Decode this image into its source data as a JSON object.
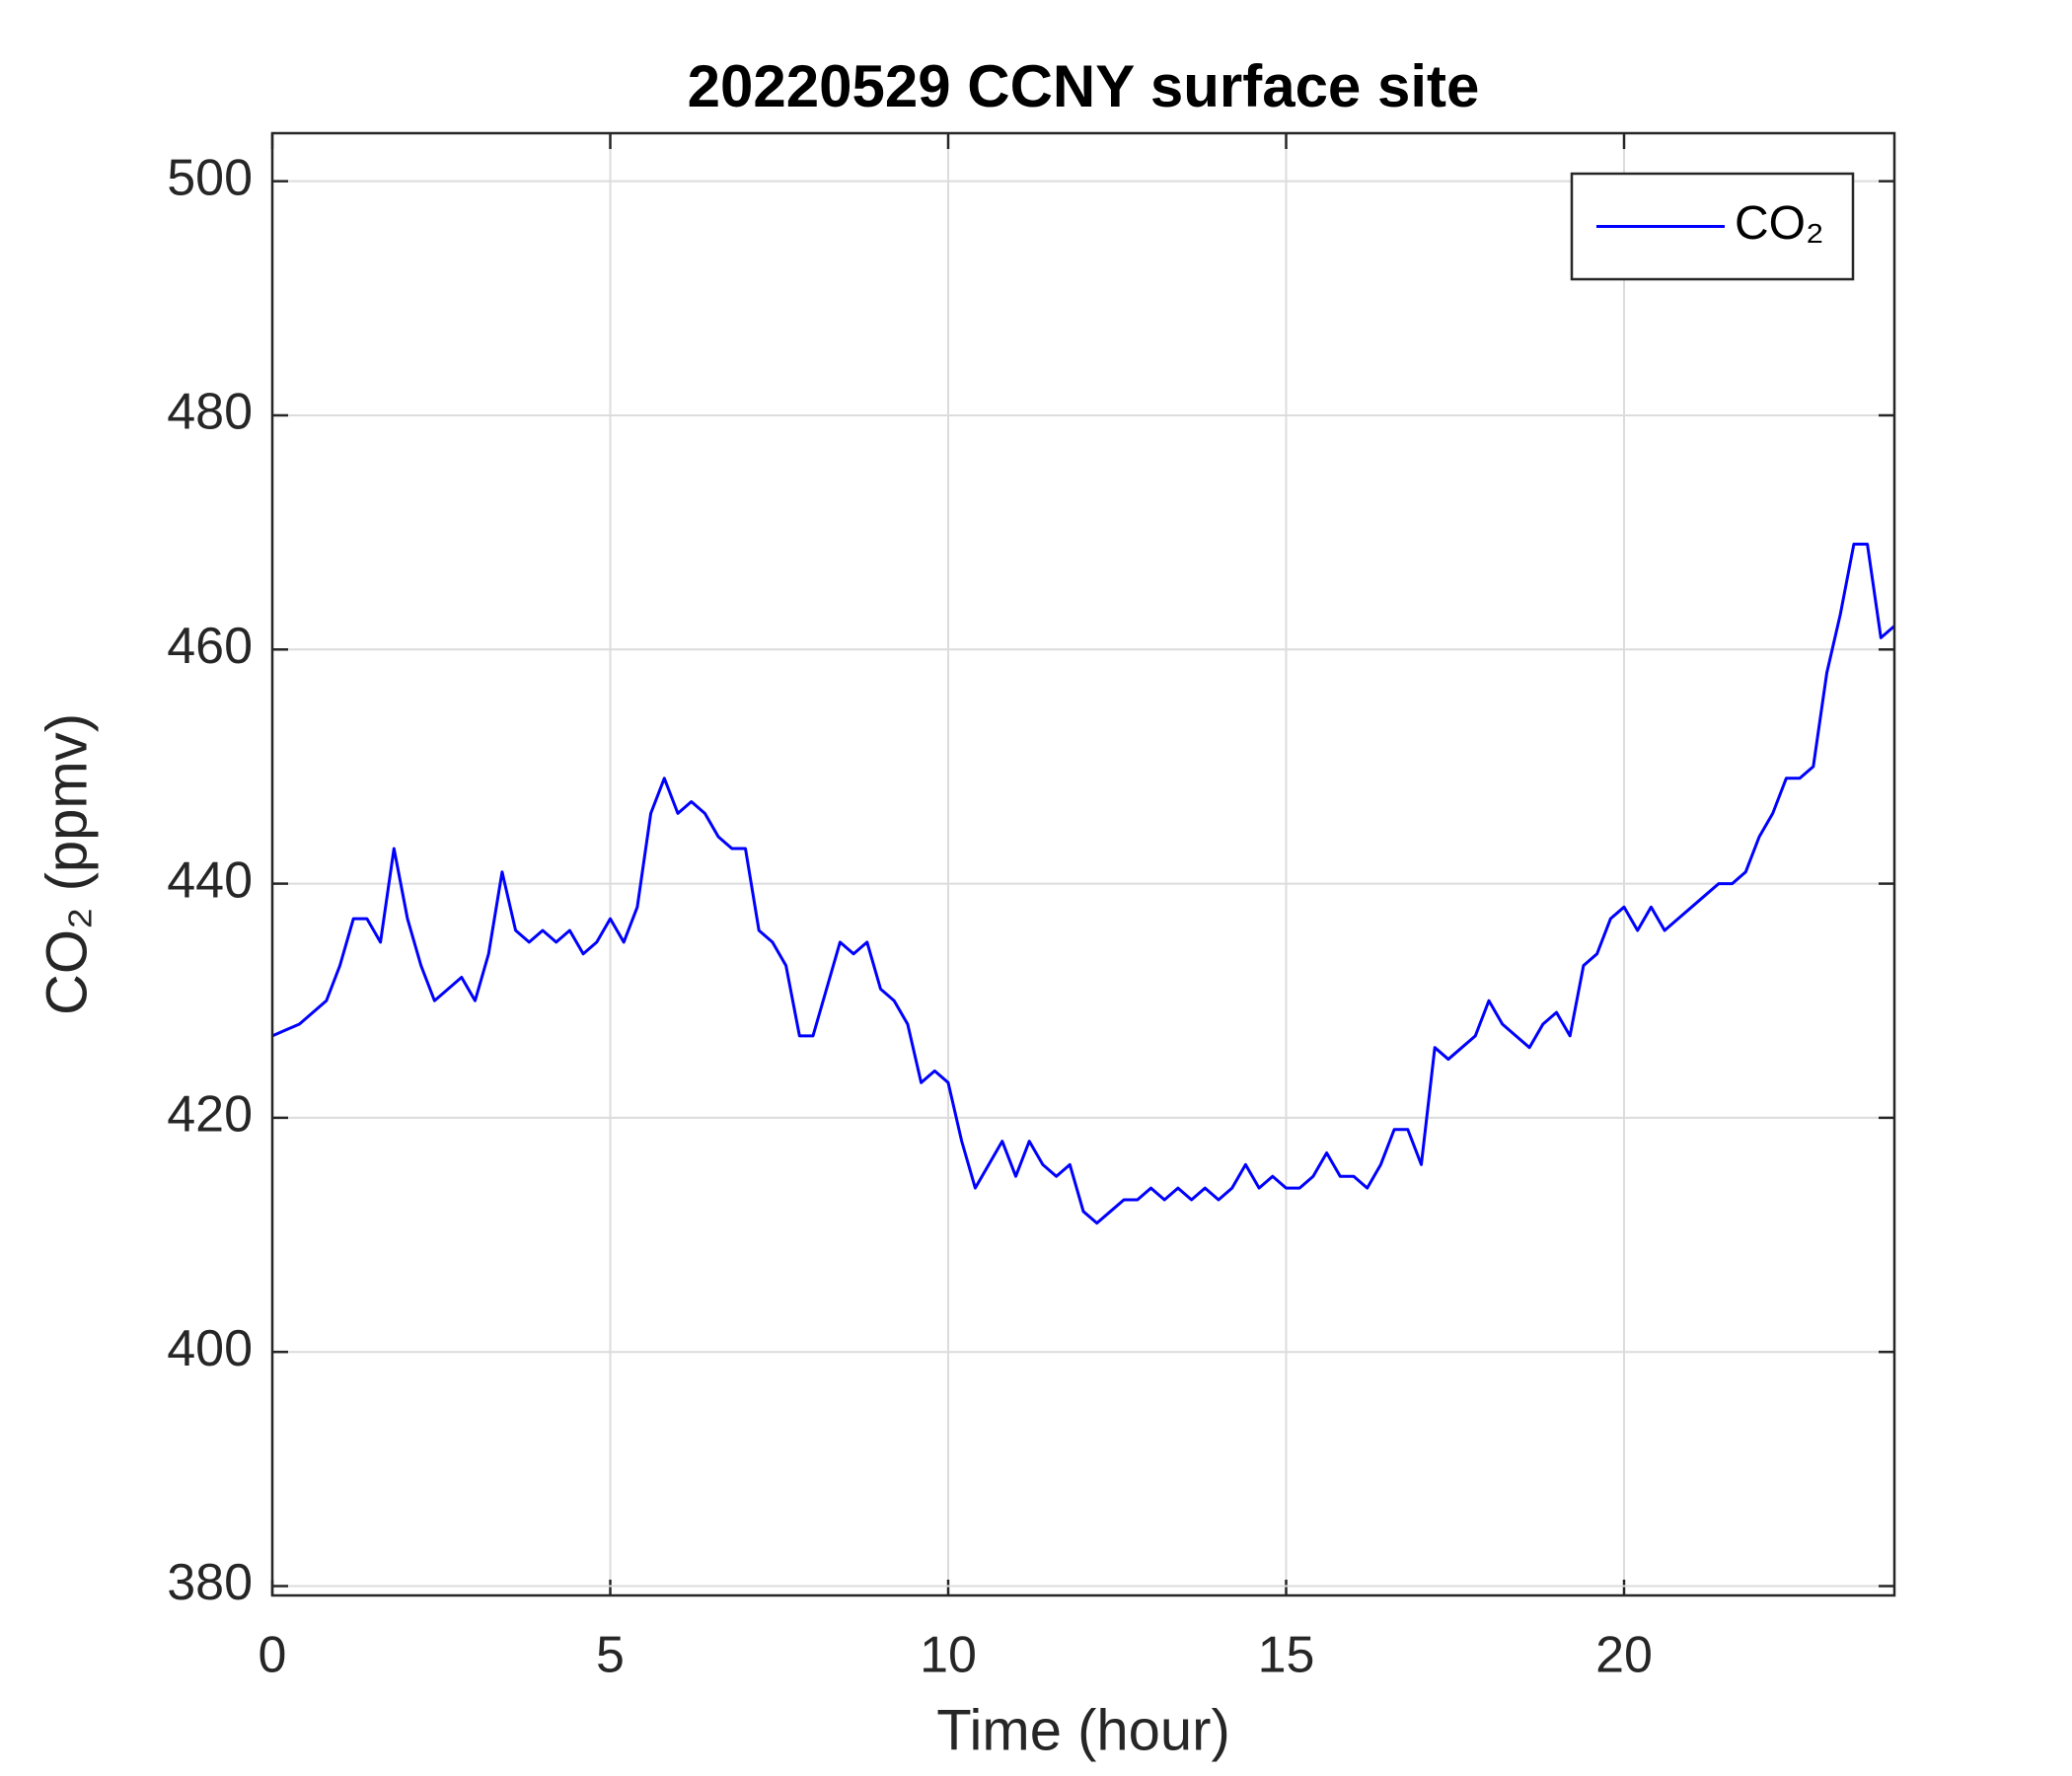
{
  "chart_data": {
    "type": "line",
    "title": "20220529 CCNY surface site",
    "xlabel": "Time (hour)",
    "ylabel": "CO₂ (ppmv)",
    "x": [
      0,
      0.2,
      0.4,
      0.6,
      0.8,
      1,
      1.2,
      1.4,
      1.6,
      1.8,
      2,
      2.2,
      2.4,
      2.6,
      2.8,
      3,
      3.2,
      3.4,
      3.6,
      3.8,
      4,
      4.2,
      4.4,
      4.6,
      4.8,
      5,
      5.2,
      5.4,
      5.6,
      5.8,
      6,
      6.2,
      6.4,
      6.6,
      6.8,
      7,
      7.2,
      7.4,
      7.6,
      7.8,
      8,
      8.2,
      8.4,
      8.6,
      8.8,
      9,
      9.2,
      9.4,
      9.6,
      9.8,
      10,
      10.2,
      10.4,
      10.6,
      10.8,
      11,
      11.2,
      11.4,
      11.6,
      11.8,
      12,
      12.2,
      12.4,
      12.6,
      12.8,
      13,
      13.2,
      13.4,
      13.6,
      13.8,
      14,
      14.2,
      14.4,
      14.6,
      14.8,
      15,
      15.2,
      15.4,
      15.6,
      15.8,
      16,
      16.2,
      16.4,
      16.6,
      16.8,
      17,
      17.2,
      17.4,
      17.6,
      17.8,
      18,
      18.2,
      18.4,
      18.6,
      18.8,
      19,
      19.2,
      19.4,
      19.6,
      19.8,
      20,
      20.2,
      20.4,
      20.6,
      20.8,
      21,
      21.2,
      21.4,
      21.6,
      21.8,
      22,
      22.2,
      22.4,
      22.6,
      22.8,
      23,
      23.2,
      23.4,
      23.6,
      23.8,
      24
    ],
    "series": [
      {
        "name": "CO₂",
        "color": "#0000ff",
        "values": [
          427,
          427.5,
          428,
          429,
          430,
          433,
          437,
          437,
          435,
          443,
          437,
          433,
          430,
          431,
          432,
          430,
          434,
          441,
          436,
          435,
          436,
          435,
          436,
          434,
          435,
          437,
          435,
          438,
          446,
          449,
          446,
          447,
          446,
          444,
          443,
          443,
          436,
          435,
          433,
          427,
          427,
          431,
          435,
          434,
          435,
          431,
          430,
          428,
          423,
          424,
          423,
          418,
          414,
          416,
          418,
          415,
          418,
          416,
          415,
          416,
          412,
          411,
          412,
          413,
          413,
          414,
          413,
          414,
          413,
          414,
          413,
          414,
          416,
          414,
          415,
          414,
          414,
          415,
          417,
          415,
          415,
          414,
          416,
          419,
          419,
          416,
          426,
          425,
          426,
          427,
          430,
          428,
          427,
          426,
          428,
          429,
          427,
          433,
          434,
          437,
          438,
          436,
          438,
          436,
          437,
          438,
          439,
          440,
          440,
          441,
          444,
          446,
          449,
          449,
          450,
          458,
          463,
          469,
          469,
          461,
          462
        ]
      }
    ],
    "xlim": [
      0,
      24
    ],
    "ylim": [
      379.2,
      504.1
    ],
    "xticks": [
      0,
      5,
      10,
      15,
      20
    ],
    "yticks": [
      380,
      400,
      420,
      440,
      460,
      480,
      500
    ],
    "grid": true,
    "legend": "upper right"
  }
}
